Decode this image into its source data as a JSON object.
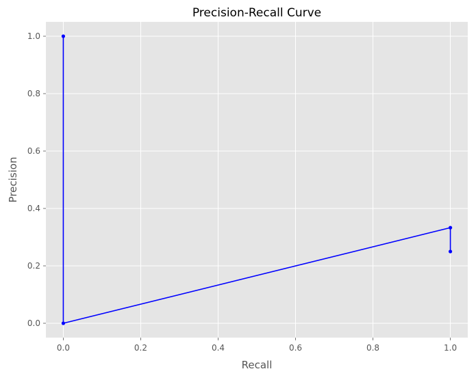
{
  "chart_data": {
    "type": "line",
    "title": "Precision-Recall Curve",
    "xlabel": "Recall",
    "ylabel": "Precision",
    "xlim": [
      -0.045,
      1.045
    ],
    "ylim": [
      -0.05,
      1.05
    ],
    "xticks": [
      0.0,
      0.2,
      0.4,
      0.6,
      0.8,
      1.0
    ],
    "xtick_labels": [
      "0.0",
      "0.2",
      "0.4",
      "0.6",
      "0.8",
      "1.0"
    ],
    "yticks": [
      0.0,
      0.2,
      0.4,
      0.6,
      0.8,
      1.0
    ],
    "ytick_labels": [
      "0.0",
      "0.2",
      "0.4",
      "0.6",
      "0.8",
      "1.0"
    ],
    "grid": true,
    "series": [
      {
        "color": "#0000ff",
        "marker": "circle",
        "points": [
          {
            "x": 0.0,
            "y": 1.0
          },
          {
            "x": 0.0,
            "y": 0.0
          },
          {
            "x": 1.0,
            "y": 0.333
          },
          {
            "x": 1.0,
            "y": 0.25
          }
        ]
      }
    ],
    "colors": {
      "plot_background": "#e5e5e5",
      "grid": "#ffffff",
      "tick_label": "#555555",
      "axis_label": "#555555",
      "title": "#000000"
    }
  }
}
